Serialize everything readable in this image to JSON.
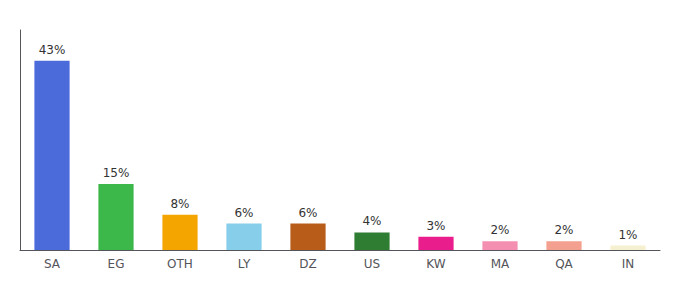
{
  "chart_data": {
    "type": "bar",
    "categories": [
      "SA",
      "EG",
      "OTH",
      "LY",
      "DZ",
      "US",
      "KW",
      "MA",
      "QA",
      "IN"
    ],
    "values": [
      43,
      15,
      8,
      6,
      6,
      4,
      3,
      2,
      2,
      1
    ],
    "value_labels": [
      "43%",
      "15%",
      "8%",
      "6%",
      "6%",
      "4%",
      "3%",
      "2%",
      "2%",
      "1%"
    ],
    "colors": [
      "#4b6bdb",
      "#3cb84a",
      "#f5a500",
      "#87ceeb",
      "#b85c1a",
      "#2e7d32",
      "#e91e8c",
      "#f48fb1",
      "#f4a090",
      "#f5f0d0"
    ],
    "ylim": [
      0,
      50
    ],
    "data_labels": true,
    "tick_labels": "x",
    "grid": false
  }
}
